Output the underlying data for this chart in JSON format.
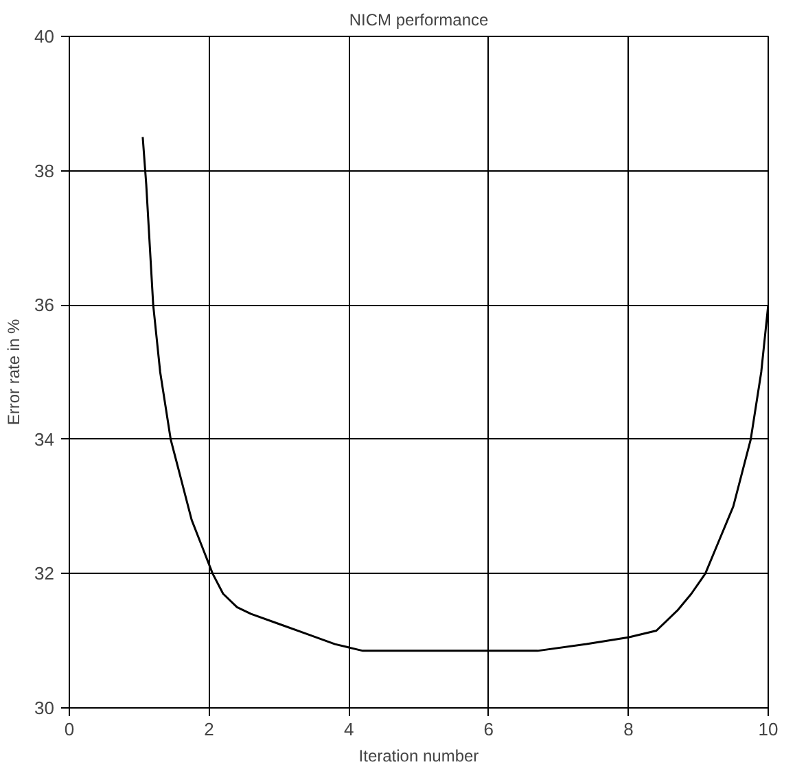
{
  "chart_data": {
    "type": "line",
    "title": "NICM performance",
    "xlabel": "Iteration number",
    "ylabel": "Error rate in %",
    "x": [
      1.05,
      1.1,
      1.2,
      1.3,
      1.45,
      1.6,
      1.75,
      1.9,
      2.05,
      2.2,
      2.4,
      2.6,
      3.0,
      3.4,
      3.8,
      4.2,
      5.0,
      6.0,
      6.7,
      7.4,
      8.0,
      8.4,
      8.7,
      8.9,
      9.1,
      9.3,
      9.5,
      9.75,
      9.9,
      9.95,
      10.0
    ],
    "series": [
      {
        "color": "#000000",
        "values": [
          38.5,
          37.8,
          36.0,
          35.0,
          34.0,
          33.4,
          32.8,
          32.4,
          32.0,
          31.7,
          31.5,
          31.4,
          31.25,
          31.1,
          30.95,
          30.85,
          30.85,
          30.85,
          30.85,
          30.95,
          31.05,
          31.15,
          31.45,
          31.7,
          32.0,
          32.5,
          33.0,
          34.0,
          35.0,
          35.5,
          36.0
        ]
      }
    ],
    "xlim": [
      0,
      10
    ],
    "ylim": [
      30,
      40
    ],
    "xticks": [
      0,
      2,
      4,
      6,
      8,
      10
    ],
    "yticks": [
      30,
      32,
      34,
      36,
      38,
      40
    ],
    "grid": true,
    "marker": "none",
    "line_style": "solid"
  }
}
